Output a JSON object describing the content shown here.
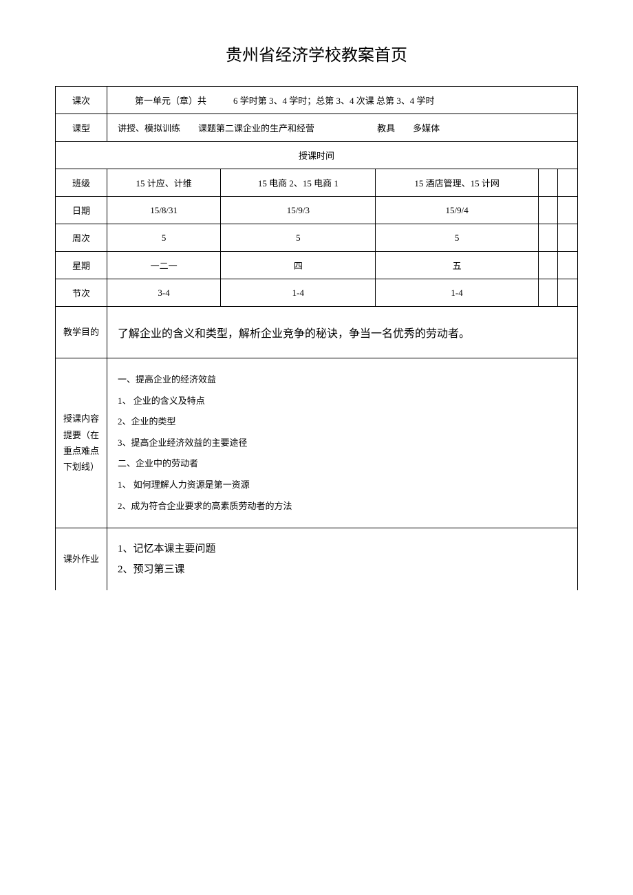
{
  "title": "贵州省经济学校教案首页",
  "table": {
    "row1": {
      "label": "课次",
      "content": "第一单元（章）共　　　6 学时第 3、4 学时；总第 3、4 次课 总第 3、4 学时"
    },
    "row2": {
      "label": "课型",
      "type_value": "讲授、模拟训练",
      "topic_label": "课题",
      "topic_value": "第二课企业的生产和经营",
      "tool_label": "教具",
      "tool_value": "多媒体"
    },
    "lecture_time_label": "授课时间",
    "schedule": {
      "class_label": "班级",
      "date_label": "日期",
      "week_label": "周次",
      "weekday_label": "星期",
      "period_label": "节次",
      "columns": [
        {
          "class": "15 计应、计维",
          "date": "15/8/31",
          "week": "5",
          "weekday": "一二一",
          "period": "3-4"
        },
        {
          "class": "15 电商 2、15 电商 1",
          "date": "15/9/3",
          "week": "5",
          "weekday": "四",
          "period": "1-4"
        },
        {
          "class": "15 酒店管理、15 计网",
          "date": "15/9/4",
          "week": "5",
          "weekday": "五",
          "period": "1-4"
        },
        {
          "class": "",
          "date": "",
          "week": "",
          "weekday": "",
          "period": ""
        },
        {
          "class": "",
          "date": "",
          "week": "",
          "weekday": "",
          "period": ""
        }
      ]
    },
    "objective": {
      "label": "教学目的",
      "content": "了解企业的含义和类型，解析企业竞争的秘诀，争当一名优秀的劳动者。"
    },
    "content_outline": {
      "label": "授课内容提要（在重点难点下划线）",
      "section1_heading": "一、提高企业的经济效益",
      "section1_items": [
        "1、 企业的含义及特点",
        "2、企业的类型",
        "3、提高企业经济效益的主要途径"
      ],
      "section2_heading": "二、企业中的劳动者",
      "section2_items": [
        "1、 如何理解人力资源是第一资源",
        "2、成为符合企业要求的高素质劳动者的方法"
      ]
    },
    "homework": {
      "label": "课外作业",
      "items": [
        "1、记忆本课主要问题",
        "2、预习第三课"
      ]
    }
  },
  "styles": {
    "background_color": "#ffffff",
    "text_color": "#000000",
    "border_color": "#000000",
    "title_fontsize": 24,
    "body_fontsize": 13,
    "objective_fontsize": 16
  }
}
